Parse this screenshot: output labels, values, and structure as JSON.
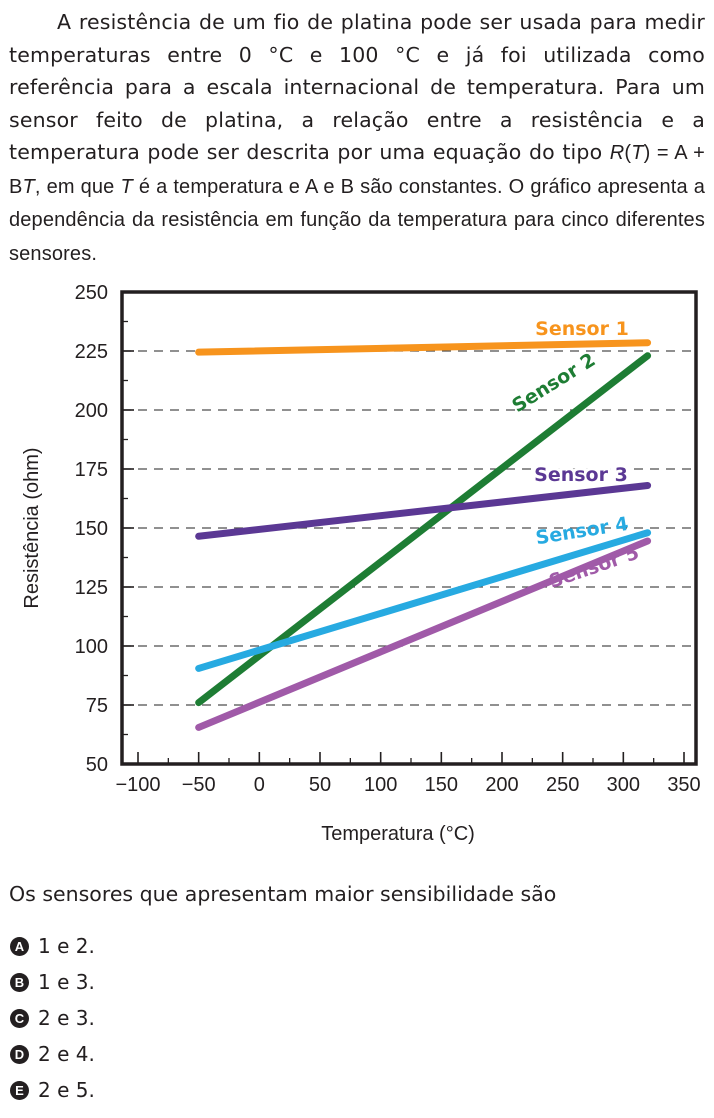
{
  "intro": {
    "part1": "A resistência de um fio de platina pode ser usada para medir temperaturas entre 0 °C e 100 °C e já foi utilizada como referência para a escala internacional de temperatura. Para um sensor feito de platina, a relação entre a resistência e a temperatura pode ser descrita por uma equação do tipo ",
    "eq_r": "R",
    "eq_open": "(",
    "eq_t1": "T",
    "eq_mid": ") = A + B",
    "eq_t2": "T",
    "eq_after": ", em que ",
    "eq_t3": "T",
    "part2": " é a temperatura e A e B são constantes. O gráfico apresenta a dependência da resistência em função da temperatura para cinco diferentes sensores."
  },
  "chart_data": {
    "type": "line",
    "xlabel": "Temperatura (°C)",
    "ylabel": "Resistência (ohm)",
    "xlim": [
      -100,
      350
    ],
    "ylim": [
      50,
      250
    ],
    "x_ticks": [
      -100,
      -50,
      0,
      50,
      100,
      150,
      200,
      250,
      300,
      350
    ],
    "x_tick_labels": [
      "−100",
      "−50",
      "0",
      "50",
      "100",
      "150",
      "200",
      "250",
      "300",
      "350"
    ],
    "y_ticks": [
      50,
      75,
      100,
      125,
      150,
      175,
      200,
      225,
      250
    ],
    "y_tick_labels": [
      "50",
      "75",
      "100",
      "125",
      "150",
      "175",
      "200",
      "225",
      "250"
    ],
    "grid_dashed_y": [
      75,
      100,
      125,
      150,
      175,
      200,
      225
    ],
    "series": [
      {
        "name": "Sensor 1",
        "color": "#f7941d",
        "x": [
          -50,
          320
        ],
        "y": [
          224.5,
          228.5
        ]
      },
      {
        "name": "Sensor 2",
        "color": "#1e7d34",
        "x": [
          -50,
          320
        ],
        "y": [
          76,
          223
        ]
      },
      {
        "name": "Sensor 3",
        "color": "#5b3894",
        "x": [
          -50,
          320
        ],
        "y": [
          146.5,
          168
        ]
      },
      {
        "name": "Sensor 4",
        "color": "#27aae1",
        "x": [
          -50,
          320
        ],
        "y": [
          90.5,
          148
        ]
      },
      {
        "name": "Sensor 5",
        "color": "#a05aa8",
        "x": [
          -50,
          320
        ],
        "y": [
          65.5,
          144.5
        ]
      }
    ]
  },
  "question": "Os sensores que apresentam maior sensibilidade são",
  "options": [
    {
      "letter": "A",
      "text": "1 e 2."
    },
    {
      "letter": "B",
      "text": "1 e 3."
    },
    {
      "letter": "C",
      "text": "2 e 3."
    },
    {
      "letter": "D",
      "text": "2 e 4."
    },
    {
      "letter": "E",
      "text": "2 e 5."
    }
  ]
}
